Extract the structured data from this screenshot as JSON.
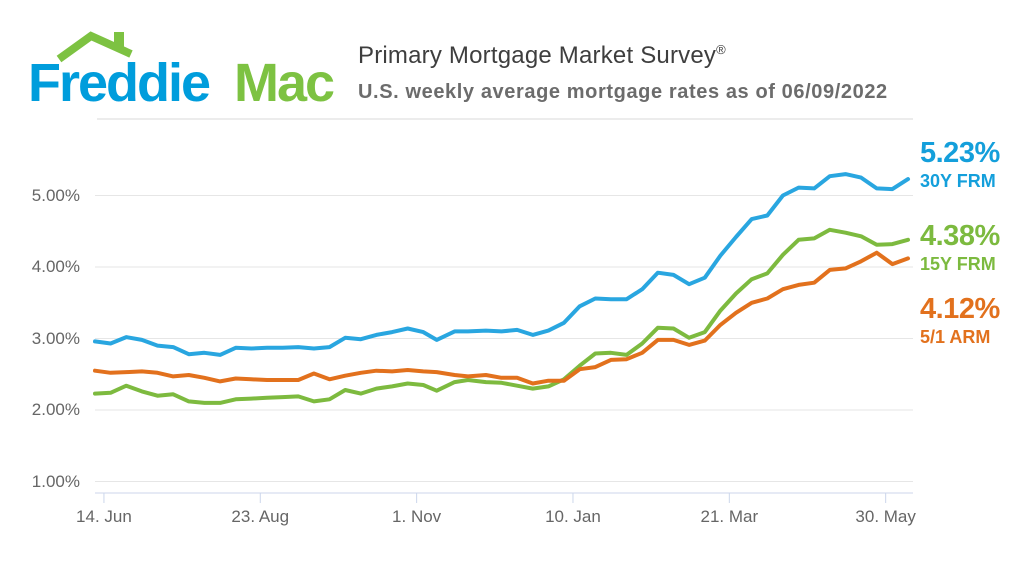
{
  "logo": {
    "word1": "Freddie",
    "word2": "Mac",
    "blue": "#009ddc",
    "green": "#7dc242"
  },
  "header": {
    "title": "Primary Mortgage Market Survey",
    "registered_mark": "®",
    "subtitle": "U.S. weekly average mortgage rates as of 06/09/2022"
  },
  "annotations": [
    {
      "value": "5.23%",
      "label": "30Y FRM",
      "color": "#149fdb"
    },
    {
      "value": "4.38%",
      "label": "15Y FRM",
      "color": "#7cba3f"
    },
    {
      "value": "4.12%",
      "label": "5/1 ARM",
      "color": "#e2711d"
    }
  ],
  "chart_data": {
    "type": "line",
    "title": "Primary Mortgage Market Survey",
    "subtitle": "U.S. weekly average mortgage rates as of 06/09/2022",
    "xlabel": "",
    "ylabel": "",
    "ylim": [
      0.85,
      5.9
    ],
    "grid": "horizontal-only",
    "legend_position": "right-annotations",
    "grid_color": "#e6e6e6",
    "axis_line_color": "#ccd6eb",
    "label_color": "#666666",
    "x": [
      "2021-06-10",
      "2021-06-17",
      "2021-06-24",
      "2021-07-01",
      "2021-07-08",
      "2021-07-15",
      "2021-07-22",
      "2021-07-29",
      "2021-08-05",
      "2021-08-12",
      "2021-08-19",
      "2021-08-26",
      "2021-09-02",
      "2021-09-09",
      "2021-09-16",
      "2021-09-23",
      "2021-09-30",
      "2021-10-07",
      "2021-10-14",
      "2021-10-21",
      "2021-10-28",
      "2021-11-04",
      "2021-11-10",
      "2021-11-18",
      "2021-11-24",
      "2021-12-02",
      "2021-12-09",
      "2021-12-16",
      "2021-12-23",
      "2021-12-30",
      "2022-01-06",
      "2022-01-13",
      "2022-01-20",
      "2022-01-27",
      "2022-02-03",
      "2022-02-10",
      "2022-02-17",
      "2022-02-24",
      "2022-03-03",
      "2022-03-10",
      "2022-03-17",
      "2022-03-24",
      "2022-03-31",
      "2022-04-07",
      "2022-04-14",
      "2022-04-21",
      "2022-04-28",
      "2022-05-05",
      "2022-05-12",
      "2022-05-19",
      "2022-05-26",
      "2022-06-02",
      "2022-06-09"
    ],
    "series": [
      {
        "name": "30Y FRM",
        "color": "#29a6e0",
        "final_value": "5.23%",
        "values": [
          2.96,
          2.93,
          3.02,
          2.98,
          2.9,
          2.88,
          2.78,
          2.8,
          2.77,
          2.87,
          2.86,
          2.87,
          2.87,
          2.88,
          2.86,
          2.88,
          3.01,
          2.99,
          3.05,
          3.09,
          3.14,
          3.09,
          2.98,
          3.1,
          3.1,
          3.11,
          3.1,
          3.12,
          3.05,
          3.11,
          3.22,
          3.45,
          3.56,
          3.55,
          3.55,
          3.69,
          3.92,
          3.89,
          3.76,
          3.85,
          4.16,
          4.42,
          4.67,
          4.72,
          5.0,
          5.11,
          5.1,
          5.27,
          5.3,
          5.25,
          5.1,
          5.09,
          5.23
        ]
      },
      {
        "name": "15Y FRM",
        "color": "#7dba3f",
        "final_value": "4.38%",
        "values": [
          2.23,
          2.24,
          2.34,
          2.26,
          2.2,
          2.22,
          2.12,
          2.1,
          2.1,
          2.15,
          2.16,
          2.17,
          2.18,
          2.19,
          2.12,
          2.15,
          2.28,
          2.23,
          2.3,
          2.33,
          2.37,
          2.35,
          2.27,
          2.39,
          2.42,
          2.39,
          2.38,
          2.34,
          2.3,
          2.33,
          2.43,
          2.62,
          2.79,
          2.8,
          2.77,
          2.93,
          3.15,
          3.14,
          3.01,
          3.09,
          3.39,
          3.63,
          3.83,
          3.91,
          4.17,
          4.38,
          4.4,
          4.52,
          4.48,
          4.43,
          4.31,
          4.32,
          4.38
        ]
      },
      {
        "name": "5/1 ARM",
        "color": "#e2711d",
        "final_value": "4.12%",
        "values": [
          2.55,
          2.52,
          2.53,
          2.54,
          2.52,
          2.47,
          2.49,
          2.45,
          2.4,
          2.44,
          2.43,
          2.42,
          2.42,
          2.42,
          2.51,
          2.43,
          2.48,
          2.52,
          2.55,
          2.54,
          2.56,
          2.54,
          2.53,
          2.49,
          2.47,
          2.49,
          2.45,
          2.45,
          2.37,
          2.41,
          2.41,
          2.57,
          2.6,
          2.7,
          2.71,
          2.8,
          2.98,
          2.98,
          2.91,
          2.97,
          3.19,
          3.36,
          3.5,
          3.56,
          3.69,
          3.75,
          3.78,
          3.96,
          3.98,
          4.08,
          4.2,
          4.04,
          4.12
        ]
      }
    ],
    "xticks": [
      {
        "label": "14. Jun",
        "date": "2021-06-14"
      },
      {
        "label": "23. Aug",
        "date": "2021-08-23"
      },
      {
        "label": "1. Nov",
        "date": "2021-11-01"
      },
      {
        "label": "10. Jan",
        "date": "2022-01-10"
      },
      {
        "label": "21. Mar",
        "date": "2022-03-21"
      },
      {
        "label": "30. May",
        "date": "2022-05-30"
      }
    ],
    "yticks": [
      {
        "label": "5.00%",
        "value": 5
      },
      {
        "label": "4.00%",
        "value": 4
      },
      {
        "label": "3.00%",
        "value": 3
      },
      {
        "label": "2.00%",
        "value": 2
      },
      {
        "label": "1.00%",
        "value": 1
      }
    ]
  }
}
